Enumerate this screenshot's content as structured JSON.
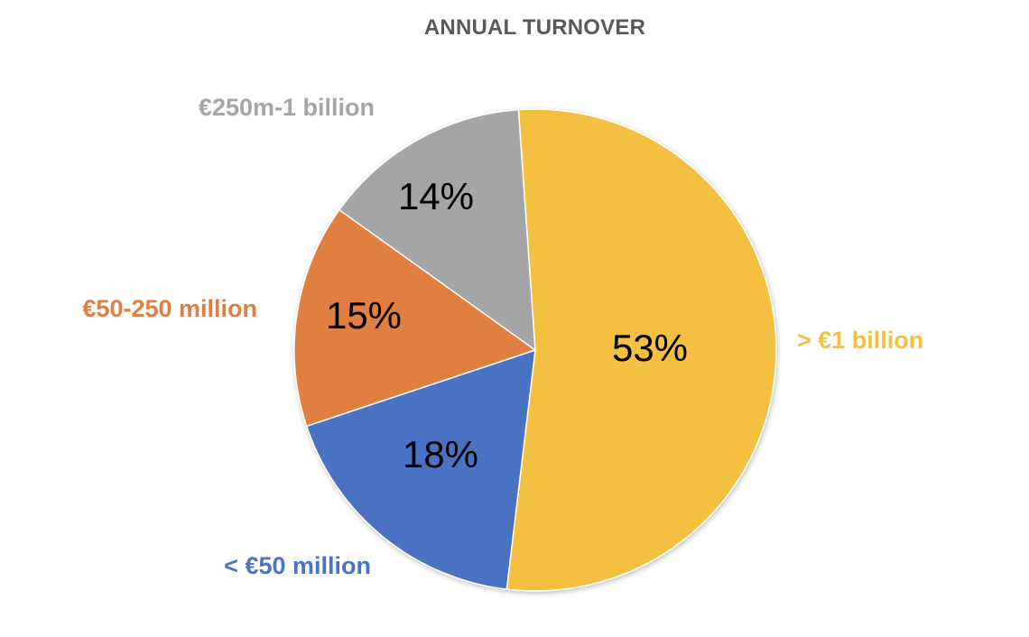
{
  "chart_data": {
    "type": "pie",
    "title": "ANNUAL TURNOVER",
    "categories": [
      "> €1 billion",
      "< €50 million",
      "€50-250 million",
      "€250m-1 billion"
    ],
    "values": [
      53,
      18,
      15,
      14
    ],
    "value_labels": [
      "53%",
      "18%",
      "15%",
      "14%"
    ],
    "colors": [
      "#F4C042",
      "#4A73C2",
      "#E07F40",
      "#A5A5A5"
    ],
    "start_angle_deg": 92,
    "direction": "clockwise",
    "label_placement": "outside"
  }
}
